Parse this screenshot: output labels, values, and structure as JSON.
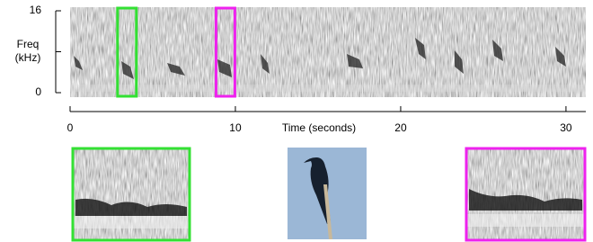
{
  "chart_data": {
    "type": "spectrogram",
    "ylabel": [
      "Freq",
      "(kHz)"
    ],
    "xlabel": "Time (seconds)",
    "xlim": [
      0,
      31.2
    ],
    "xticks": [
      0,
      10,
      20,
      30
    ],
    "ylim": [
      0,
      16
    ],
    "yticks": [
      0,
      16
    ],
    "yminorticks": [
      8
    ],
    "highlights": [
      {
        "x": [
          2.87,
          4.01
        ],
        "color": "#33e033"
      },
      {
        "x": [
          8.83,
          9.97
        ],
        "color": "#ee22ee"
      }
    ]
  }
}
